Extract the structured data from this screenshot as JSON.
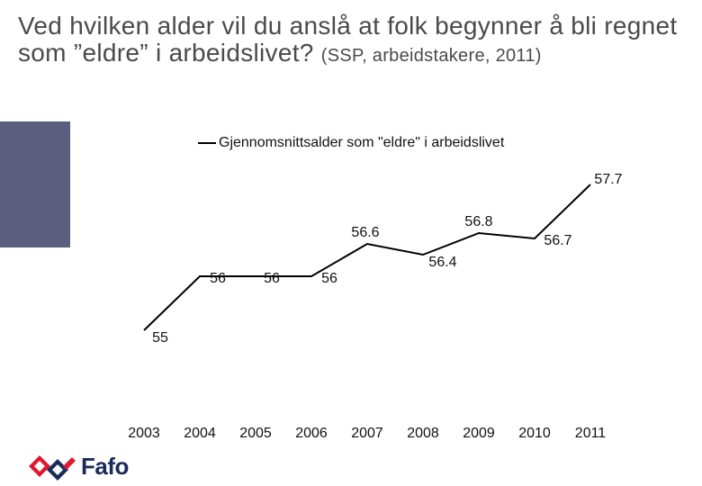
{
  "title": {
    "main": "Ved hvilken alder vil du anslå at folk begynner å bli regnet som ”eldre” i arbeidslivet?",
    "source": "(SSP, arbeidstakere, 2011)"
  },
  "legend": {
    "label": "Gjennomsnittsalder som \"eldre\" i arbeidslivet"
  },
  "logo": {
    "text": "Fafo"
  },
  "colors": {
    "line": "#000000",
    "side_block": "#5b5f7d",
    "logo_red": "#e0182d",
    "logo_navy": "#1a2a5a"
  },
  "chart_data": {
    "type": "line",
    "categories": [
      "2003",
      "2004",
      "2005",
      "2006",
      "2007",
      "2008",
      "2009",
      "2010",
      "2011"
    ],
    "series": [
      {
        "name": "Gjennomsnittsalder som \"eldre\" i arbeidslivet",
        "values": [
          55,
          56,
          56,
          56,
          56.6,
          56.4,
          56.8,
          56.7,
          57.7
        ],
        "labels": [
          "55",
          "56",
          "56",
          "56",
          "56.6",
          "56.4",
          "56.8",
          "56.7",
          "57.7"
        ]
      }
    ],
    "legend": "top",
    "grid": false
  }
}
